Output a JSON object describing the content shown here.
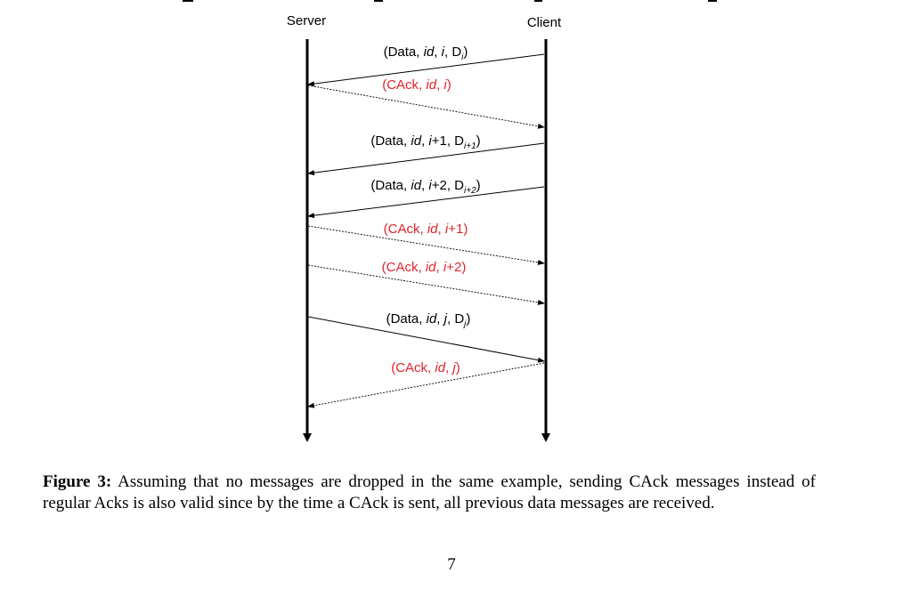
{
  "diagram": {
    "server_label": "Server",
    "client_label": "Client",
    "messages": [
      {
        "parts": [
          [
            "(Data, ",
            "n"
          ],
          [
            "id",
            "i"
          ],
          [
            ", ",
            "n"
          ],
          [
            "i",
            "i"
          ],
          [
            ", D",
            "n"
          ],
          [
            "i",
            "sub"
          ],
          [
            ")",
            "n"
          ]
        ],
        "color": "#000000",
        "kind": "data",
        "from": "client"
      },
      {
        "parts": [
          [
            "(CAck, ",
            "n"
          ],
          [
            "id",
            "i"
          ],
          [
            ", ",
            "n"
          ],
          [
            "i",
            "i"
          ],
          [
            ")",
            "n"
          ]
        ],
        "color": "#e0242c",
        "kind": "cack",
        "from": "server"
      },
      {
        "parts": [
          [
            "(Data, ",
            "n"
          ],
          [
            "id",
            "i"
          ],
          [
            ", ",
            "n"
          ],
          [
            "i",
            "i"
          ],
          [
            "+1, D",
            "n"
          ],
          [
            "i+1",
            "sub"
          ],
          [
            ")",
            "n"
          ]
        ],
        "color": "#000000",
        "kind": "data",
        "from": "client"
      },
      {
        "parts": [
          [
            "(Data, ",
            "n"
          ],
          [
            "id",
            "i"
          ],
          [
            ", ",
            "n"
          ],
          [
            "i",
            "i"
          ],
          [
            "+2, D",
            "n"
          ],
          [
            "i+2",
            "sub"
          ],
          [
            ")",
            "n"
          ]
        ],
        "color": "#000000",
        "kind": "data",
        "from": "client"
      },
      {
        "parts": [
          [
            "(CAck, ",
            "n"
          ],
          [
            "id",
            "i"
          ],
          [
            ", ",
            "n"
          ],
          [
            "i",
            "i"
          ],
          [
            "+1)",
            "n"
          ]
        ],
        "color": "#e0242c",
        "kind": "cack",
        "from": "server"
      },
      {
        "parts": [
          [
            "(CAck, ",
            "n"
          ],
          [
            "id",
            "i"
          ],
          [
            ", ",
            "n"
          ],
          [
            "i",
            "i"
          ],
          [
            "+2)",
            "n"
          ]
        ],
        "color": "#e0242c",
        "kind": "cack",
        "from": "server"
      },
      {
        "parts": [
          [
            "(Data, ",
            "n"
          ],
          [
            "id",
            "i"
          ],
          [
            ", ",
            "n"
          ],
          [
            "j",
            "i"
          ],
          [
            ", D",
            "n"
          ],
          [
            "j",
            "sub"
          ],
          [
            ")",
            "n"
          ]
        ],
        "color": "#000000",
        "kind": "data",
        "from": "server"
      },
      {
        "parts": [
          [
            "(CAck, ",
            "n"
          ],
          [
            "id",
            "i"
          ],
          [
            ", ",
            "n"
          ],
          [
            "j",
            "i"
          ],
          [
            ")",
            "n"
          ]
        ],
        "color": "#e0242c",
        "kind": "cack",
        "from": "client"
      }
    ]
  },
  "caption": {
    "label": "Figure 3:",
    "text": "Assuming that no messages are dropped in the same example, sending CAck messages instead of regular Acks is also valid since by the time a CAck is sent, all previous data messages are received."
  },
  "page_number": "7"
}
